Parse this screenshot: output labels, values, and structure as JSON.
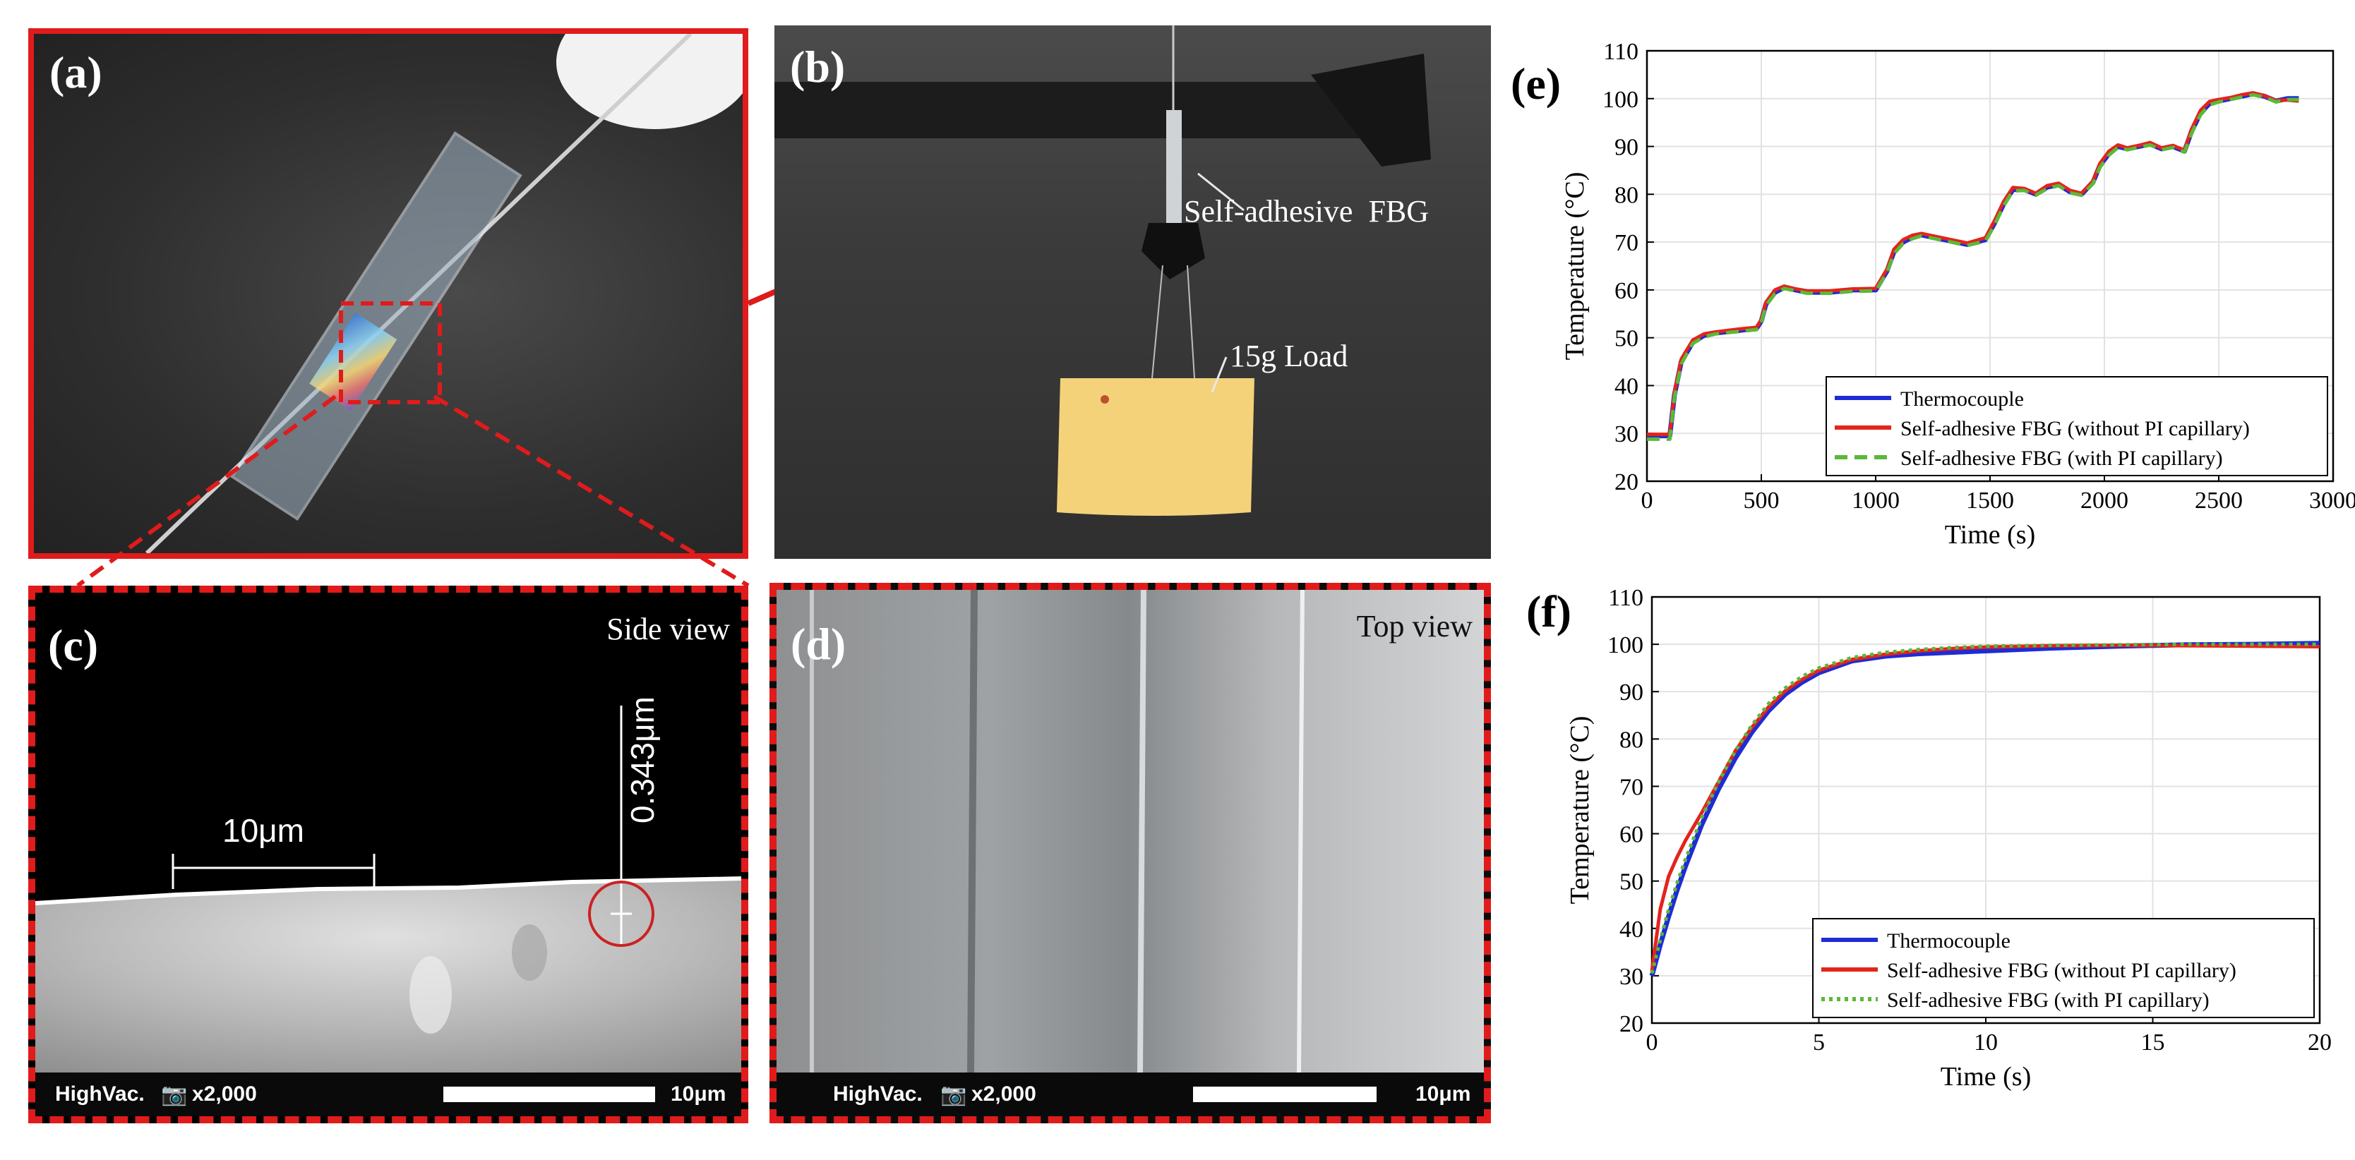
{
  "panels": {
    "a": {
      "label": "(a)"
    },
    "b": {
      "label": "(b)",
      "annotation_fbg": "Self-adhesive  FBG",
      "annotation_load": "15g Load"
    },
    "c": {
      "label": "(c)",
      "view": "Side view",
      "dim_width": "10μm",
      "dim_height": "0.343μm",
      "sem": {
        "mode": "HighVac.",
        "mag": "x2,000",
        "scale": "10μm"
      }
    },
    "d": {
      "label": "(d)",
      "view": "Top view",
      "sem": {
        "mode": "HighVac.",
        "mag": "x2,000",
        "scale": "10μm"
      }
    }
  },
  "colors": {
    "frame_red": "#e01b1b",
    "thermocouple": "#1f2bd6",
    "fbg_without": "#e3241b",
    "fbg_with": "#5cb83a"
  },
  "chart_data": [
    {
      "id": "e",
      "panel_label": "(e)",
      "type": "line",
      "xlabel": "Time (s)",
      "ylabel": "Temperature (°C)",
      "xlim": [
        0,
        3000
      ],
      "ylim": [
        20,
        110
      ],
      "xticks": [
        0,
        500,
        1000,
        1500,
        2000,
        2500,
        3000
      ],
      "yticks": [
        20,
        30,
        40,
        50,
        60,
        70,
        80,
        90,
        100,
        110
      ],
      "grid": true,
      "legend_position": "bottom-right",
      "x": [
        0,
        100,
        120,
        150,
        200,
        250,
        300,
        400,
        480,
        500,
        520,
        560,
        600,
        650,
        700,
        800,
        900,
        1000,
        1050,
        1080,
        1120,
        1160,
        1200,
        1300,
        1400,
        1480,
        1520,
        1560,
        1600,
        1650,
        1700,
        1750,
        1800,
        1850,
        1900,
        1950,
        1980,
        2020,
        2060,
        2100,
        2150,
        2200,
        2250,
        2300,
        2350,
        2380,
        2420,
        2460,
        2500,
        2550,
        2600,
        2650,
        2700,
        2750,
        2800,
        2850
      ],
      "series": [
        {
          "name": "Thermocouple",
          "style": "solid",
          "values": [
            29.5,
            29.5,
            38,
            45,
            49,
            50.5,
            51,
            51.5,
            52,
            53.5,
            57,
            59.5,
            60.5,
            60,
            59.5,
            59.5,
            60,
            60,
            64,
            68,
            70,
            71,
            71.5,
            70.5,
            69.5,
            70.5,
            74,
            78,
            81,
            81,
            80,
            81.5,
            82,
            80.5,
            80,
            82.5,
            86,
            88.5,
            90,
            89.5,
            90,
            90.5,
            89.5,
            90,
            89,
            93,
            97,
            99,
            99.5,
            100,
            100.5,
            101,
            100.5,
            99.5,
            100,
            100
          ]
        },
        {
          "name": "Self-adhesive FBG (without PI capillary)",
          "style": "solid",
          "values": [
            29.8,
            29.8,
            38.5,
            45.5,
            49.5,
            50.8,
            51.2,
            51.8,
            52.2,
            53.8,
            57.4,
            60,
            60.8,
            60.2,
            59.8,
            59.8,
            60.2,
            60.3,
            64.4,
            68.5,
            70.5,
            71.4,
            71.8,
            70.8,
            69.8,
            70.9,
            74.5,
            78.5,
            81.4,
            81.2,
            80.2,
            81.8,
            82.3,
            80.8,
            80.2,
            82.8,
            86.4,
            89,
            90.3,
            89.7,
            90.2,
            90.8,
            89.7,
            90.2,
            89.2,
            93.5,
            97.5,
            99.4,
            99.8,
            100.2,
            100.8,
            101.2,
            100.6,
            99.6,
            99.7,
            99.5
          ]
        },
        {
          "name": "Self-adhesive FBG (with PI capillary)",
          "style": "dashed",
          "values": [
            28.8,
            28.8,
            37.5,
            44.5,
            48.8,
            50.2,
            50.8,
            51.3,
            51.7,
            53.2,
            56.7,
            59.2,
            60.3,
            59.8,
            59.3,
            59.3,
            59.7,
            59.8,
            63.7,
            67.6,
            69.7,
            70.7,
            71.3,
            70.3,
            69.3,
            70.2,
            73.6,
            77.6,
            80.7,
            80.8,
            79.8,
            81.2,
            81.8,
            80.3,
            79.8,
            82.2,
            85.6,
            88.2,
            89.8,
            89.3,
            89.8,
            90.3,
            89.3,
            89.8,
            88.8,
            92.6,
            96.6,
            98.7,
            99.3,
            99.8,
            100.3,
            100.8,
            100.3,
            99.3,
            99.8,
            99.8
          ]
        }
      ]
    },
    {
      "id": "f",
      "panel_label": "(f)",
      "type": "line",
      "xlabel": "Time (s)",
      "ylabel": "Temperature (°C)",
      "xlim": [
        0,
        20
      ],
      "ylim": [
        20,
        110
      ],
      "xticks": [
        0,
        5,
        10,
        15,
        20
      ],
      "yticks": [
        20,
        30,
        40,
        50,
        60,
        70,
        80,
        90,
        100,
        110
      ],
      "grid": true,
      "legend_position": "bottom-right",
      "x": [
        0,
        0.25,
        0.5,
        0.75,
        1,
        1.5,
        2,
        2.5,
        3,
        3.5,
        4,
        4.5,
        5,
        6,
        7,
        8,
        9,
        10,
        12,
        14,
        16,
        18,
        20
      ],
      "series": [
        {
          "name": "Thermocouple",
          "style": "solid",
          "values": [
            30,
            36.5,
            42.5,
            48,
            53,
            62,
            69.5,
            76,
            81.5,
            86,
            89.5,
            92,
            94,
            96.5,
            97.5,
            98,
            98.3,
            98.6,
            99.2,
            99.6,
            99.9,
            100,
            100.2
          ]
        },
        {
          "name": "Self-adhesive FBG (without PI capillary)",
          "style": "solid",
          "values": [
            31,
            44,
            51,
            55,
            58.5,
            64.5,
            71,
            77.5,
            82.5,
            86.8,
            90.2,
            92.6,
            94.5,
            96.8,
            97.9,
            98.6,
            99.1,
            99.4,
            99.7,
            99.8,
            99.7,
            99.6,
            99.5
          ]
        },
        {
          "name": "Self-adhesive FBG (with PI capillary)",
          "style": "dotted",
          "values": [
            30.5,
            37.5,
            44,
            49.5,
            54.5,
            63.5,
            71,
            77.5,
            83,
            87.5,
            90.8,
            93.2,
            95,
            97.2,
            98.3,
            98.9,
            99.3,
            99.6,
            99.8,
            99.9,
            100,
            100,
            100
          ]
        }
      ]
    }
  ]
}
